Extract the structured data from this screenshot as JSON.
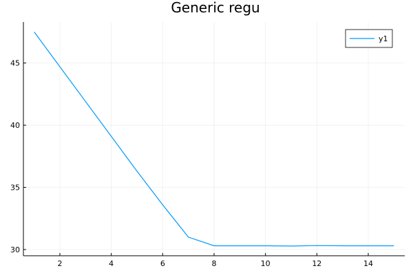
{
  "chart_data": {
    "type": "line",
    "title": "Generic regu",
    "xlabel": "",
    "ylabel": "",
    "xlim": [
      0.58,
      15.42
    ],
    "ylim": [
      29.5,
      48.3
    ],
    "xticks": [
      2,
      4,
      6,
      8,
      10,
      12,
      14
    ],
    "yticks": [
      30,
      35,
      40,
      45
    ],
    "grid": true,
    "legend_position": "top-right",
    "series": [
      {
        "name": "y1",
        "color": "#009AFA",
        "x": [
          1,
          2,
          3,
          4,
          5,
          6,
          7,
          8,
          9,
          10,
          11,
          12,
          13,
          14,
          15
        ],
        "y": [
          47.5,
          44.7,
          41.9,
          39.1,
          36.3,
          33.6,
          31.0,
          30.3,
          30.3,
          30.3,
          30.28,
          30.32,
          30.3,
          30.3,
          30.3
        ]
      }
    ]
  }
}
